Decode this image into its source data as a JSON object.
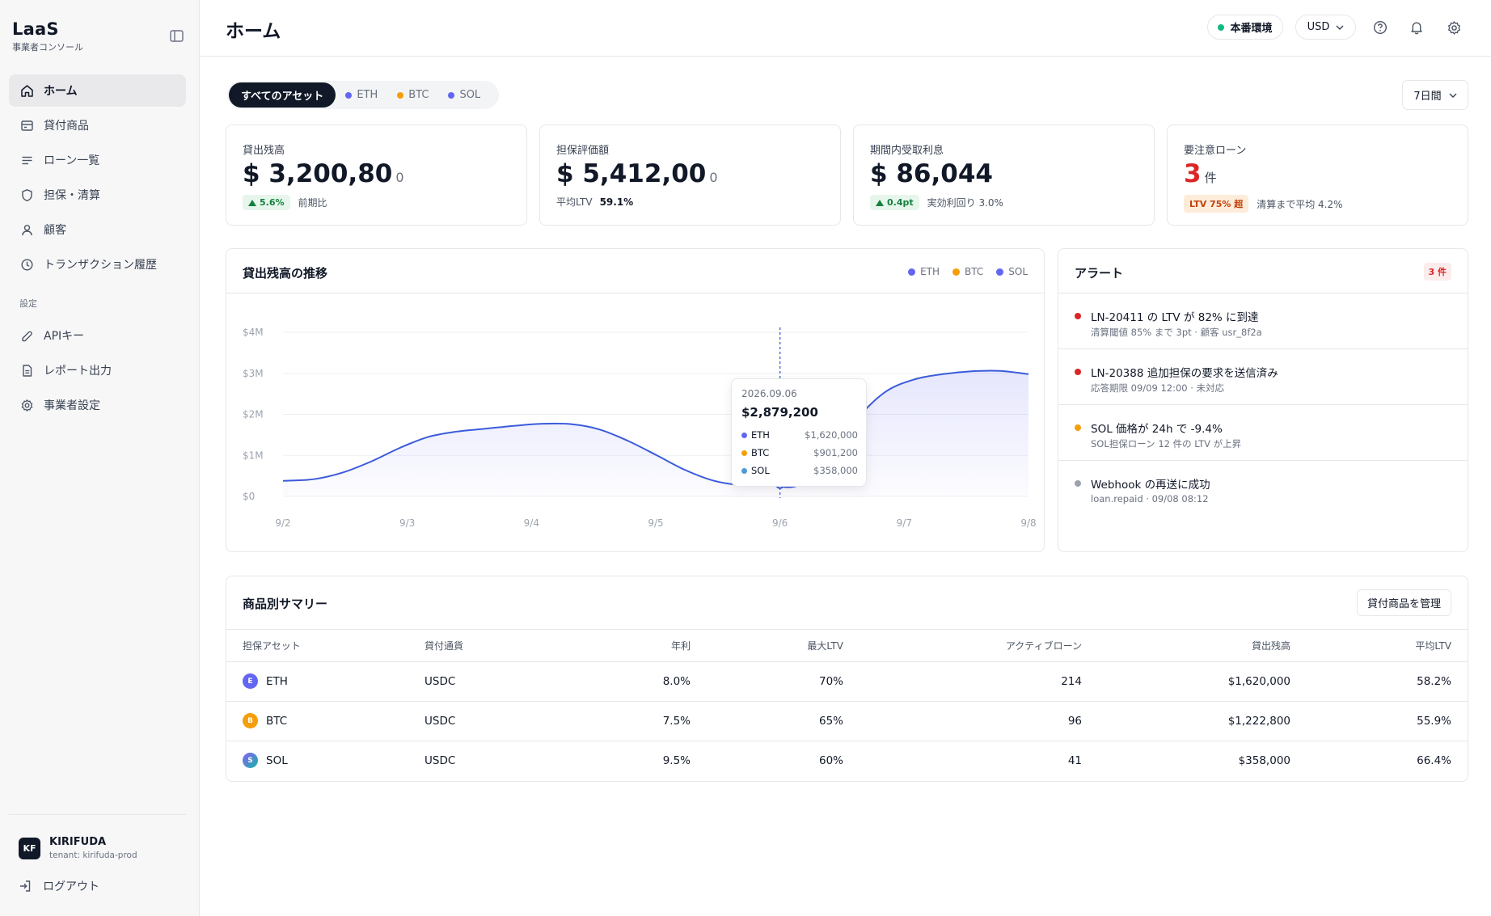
{
  "app": {
    "title": "LaaS",
    "subtitle": "事業者コンソール"
  },
  "sidebar": {
    "items": [
      {
        "label": "ホーム",
        "icon": "home-icon",
        "active": true
      },
      {
        "label": "貸付商品",
        "icon": "card-icon"
      },
      {
        "label": "ローン一覧",
        "icon": "list-icon"
      },
      {
        "label": "担保・清算",
        "icon": "shield-icon"
      },
      {
        "label": "顧客",
        "icon": "user-icon"
      },
      {
        "label": "トランザクション履歴",
        "icon": "clock-icon"
      }
    ],
    "section_label": "設定",
    "settings_items": [
      {
        "label": "APIキー",
        "icon": "key-icon"
      },
      {
        "label": "レポート出力",
        "icon": "file-icon"
      },
      {
        "label": "事業者設定",
        "icon": "gear-icon"
      }
    ],
    "user": {
      "initials": "KF",
      "name": "KIRIFUDA",
      "tenant": "tenant: kirifuda-prod"
    },
    "logout_label": "ログアウト"
  },
  "header": {
    "title": "ホーム",
    "env_label": "本番環境",
    "currency": "USD"
  },
  "filters": {
    "assets": [
      {
        "label": "すべてのアセット",
        "active": true
      },
      {
        "label": "ETH",
        "color": "#6366f1"
      },
      {
        "label": "BTC",
        "color": "#f59e0b"
      },
      {
        "label": "SOL",
        "color": "#6366f1"
      }
    ],
    "period": "7日間"
  },
  "kpis": [
    {
      "label": "貸出残高",
      "value": "$ 3,200,80",
      "tail": "0",
      "badge": "5.6%",
      "note": "前期比"
    },
    {
      "label": "担保評価額",
      "value": "$ 5,412,00",
      "tail": "0",
      "note": "平均LTV",
      "note_value": "59.1%"
    },
    {
      "label": "期間内受取利息",
      "value": "$ 86,044",
      "badge": "0.4pt",
      "note": "実効利回り 3.0%"
    },
    {
      "label": "要注意ローン",
      "value": "3",
      "unit": "件",
      "warn_badge": "LTV 75% 超",
      "note": "清算まで平均 4.2%"
    }
  ],
  "trend_panel": {
    "title": "貸出残高の推移",
    "legend": [
      {
        "label": "ETH",
        "color": "#6366f1"
      },
      {
        "label": "BTC",
        "color": "#f59e0b"
      },
      {
        "label": "SOL",
        "color": "#6366f1"
      }
    ],
    "tooltip": {
      "date": "2026.09.06",
      "total": "$2,879,200",
      "rows": [
        {
          "label": "ETH",
          "value": "$1,620,000",
          "color": "#6366f1"
        },
        {
          "label": "BTC",
          "value": "$901,200",
          "color": "#f59e0b"
        },
        {
          "label": "SOL",
          "value": "$358,000",
          "color": "#4f9bd9"
        }
      ]
    }
  },
  "chart_data": {
    "type": "area",
    "title": "貸出残高の推移",
    "x": [
      "9/2",
      "9/3",
      "9/4",
      "9/5",
      "9/6",
      "9/7",
      "9/8"
    ],
    "y_ticks": [
      "$0",
      "$1M",
      "$2M",
      "$3M",
      "$4M"
    ],
    "ylim": [
      0,
      4000000
    ],
    "series": [
      {
        "x": [
          1.48,
          1.75,
          2.0,
          2.25,
          2.5,
          2.75,
          3.0,
          3.25,
          3.5,
          3.75,
          4.0,
          4.25,
          4.5,
          4.75,
          5.0,
          5.25,
          5.5,
          5.75,
          6.0,
          6.25,
          6.5,
          6.75,
          7.0,
          7.25,
          7.5,
          7.75,
          8.0
        ],
        "y": [
          380000,
          420000,
          580000,
          850000,
          1180000,
          1450000,
          1580000,
          1650000,
          1720000,
          1770000,
          1760000,
          1630000,
          1350000,
          1000000,
          640000,
          380000,
          270000,
          260000,
          290000,
          1050000,
          1900000,
          2550000,
          2850000,
          2980000,
          3050000,
          3060000,
          2980000
        ]
      }
    ],
    "highlight_x": "9/6",
    "grid": true,
    "color": "#3b5bdb"
  },
  "alerts": {
    "title": "アラート",
    "count_label": "3 件",
    "items": [
      {
        "title": "LN-20411 の LTV が 82% に到達",
        "sub": "清算閾値 85% まで 3pt · 顧客 usr_8f2a",
        "color": "#dc2626"
      },
      {
        "title": "LN-20388 追加担保の要求を送信済み",
        "sub": "応答期限 09/09 12:00 · 未対応",
        "color": "#dc2626"
      },
      {
        "title": "SOL 価格が 24h で -9.4%",
        "sub": "SOL担保ローン 12 件の LTV が上昇",
        "color": "#f59e0b"
      },
      {
        "title": "Webhook の再送に成功",
        "sub": "loan.repaid · 09/08 08:12",
        "color": "#9ca3af"
      }
    ]
  },
  "summary": {
    "title": "商品別サマリー",
    "manage_label": "貸付商品を管理",
    "columns": [
      "担保アセット",
      "貸付通貨",
      "年利",
      "最大LTV",
      "アクティブローン",
      "貸出残高",
      "平均LTV"
    ],
    "rows": [
      {
        "icon_letter": "E",
        "icon_color": "#6366f1",
        "asset": "ETH",
        "currency": "USDC",
        "rate": "8.0%",
        "max_ltv": "70%",
        "active": "214",
        "balance": "$1,620,000",
        "avg_ltv": "58.2%"
      },
      {
        "icon_letter": "B",
        "icon_color": "#f59e0b",
        "asset": "BTC",
        "currency": "USDC",
        "rate": "7.5%",
        "max_ltv": "65%",
        "active": "96",
        "balance": "$1,222,800",
        "avg_ltv": "55.9%"
      },
      {
        "icon_letter": "S",
        "icon_color": "#3fa7c9",
        "asset": "SOL",
        "currency": "USDC",
        "rate": "9.5%",
        "max_ltv": "60%",
        "active": "41",
        "balance": "$358,000",
        "avg_ltv": "66.4%"
      }
    ]
  }
}
